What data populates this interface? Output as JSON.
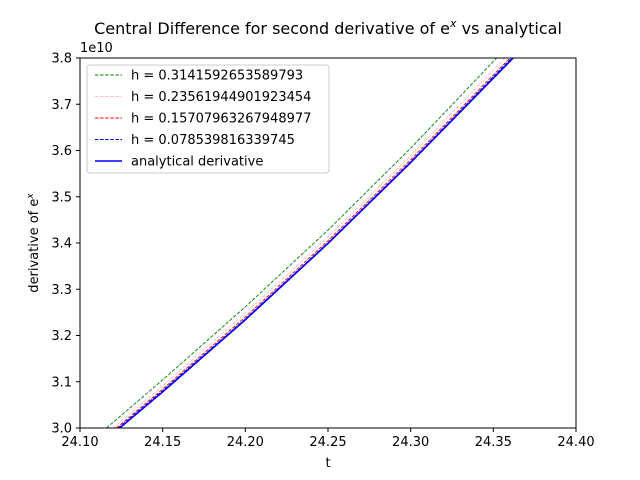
{
  "chart_data": {
    "type": "line",
    "title_main": "Central Difference for second derivative of e",
    "title_sup": "x",
    "title_tail": " vs analytical",
    "xlabel": "t",
    "ylabel_main": "derivative of e",
    "ylabel_sup": "x",
    "offset_text": "1e10",
    "xlim": [
      24.1,
      24.4
    ],
    "ylim": [
      3.0,
      3.8
    ],
    "x_ticks": [
      "24.10",
      "24.15",
      "24.20",
      "24.25",
      "24.30",
      "24.35",
      "24.40"
    ],
    "y_ticks": [
      "3.0",
      "3.1",
      "3.2",
      "3.3",
      "3.4",
      "3.5",
      "3.6",
      "3.7",
      "3.8"
    ],
    "legend_position": "upper-left",
    "series": [
      {
        "name": "h = 0.3141592653589793",
        "color": "#008000",
        "style": "dashed",
        "x": [
          24.116,
          24.15,
          24.2,
          24.25,
          24.3,
          24.352
        ],
        "y": [
          3.0,
          3.104,
          3.262,
          3.428,
          3.605,
          3.8
        ]
      },
      {
        "name": "h = 0.23561944901923454",
        "color": "#ffc0cb",
        "style": "dashed",
        "x": [
          24.12,
          24.15,
          24.2,
          24.25,
          24.3,
          24.357
        ],
        "y": [
          3.0,
          3.091,
          3.248,
          3.413,
          3.589,
          3.8
        ]
      },
      {
        "name": "h = 0.15707963267948977",
        "color": "#ff0000",
        "style": "dashed",
        "x": [
          24.122,
          24.15,
          24.2,
          24.25,
          24.3,
          24.36
        ],
        "y": [
          3.0,
          3.084,
          3.24,
          3.405,
          3.58,
          3.8
        ]
      },
      {
        "name": "h = 0.078539816339745",
        "color": "#0000cd",
        "style": "dashed",
        "x": [
          24.123,
          24.15,
          24.2,
          24.25,
          24.3,
          24.361
        ],
        "y": [
          3.0,
          3.081,
          3.236,
          3.401,
          3.576,
          3.8
        ]
      },
      {
        "name": "analytical derivative",
        "color": "#0000ff",
        "style": "solid",
        "x": [
          24.124,
          24.15,
          24.2,
          24.25,
          24.3,
          24.362
        ],
        "y": [
          3.0,
          3.078,
          3.234,
          3.399,
          3.574,
          3.8
        ]
      }
    ]
  }
}
